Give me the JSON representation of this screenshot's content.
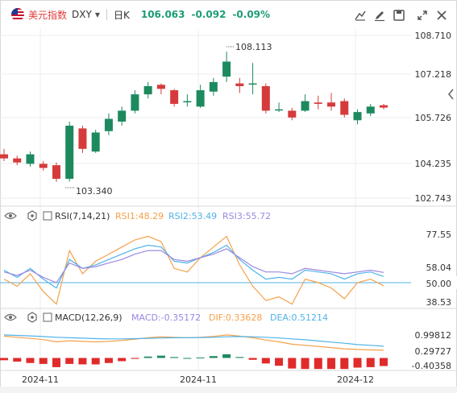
{
  "header": {
    "symbol_name": "美元指数",
    "symbol_code": "DXY",
    "interval": "日K",
    "price": "106.063",
    "change": "-0.092",
    "change_pct": "-0.09%",
    "tool_icons": [
      "indicator-icon",
      "draw-icon",
      "save-icon",
      "fullscreen-icon",
      "close-icon"
    ]
  },
  "colors": {
    "up": "#1c8a5e",
    "down": "#d63b3b",
    "rsi1": "#f5a049",
    "rsi2": "#4fb3e8",
    "rsi3": "#9b88e0",
    "macd_up": "#1c8a5e",
    "macd_down": "#e02b2b",
    "dif": "#f5a049",
    "dea": "#4fb3e8"
  },
  "main_axis": [
    "108.710",
    "107.218",
    "105.726",
    "104.235",
    "102.743"
  ],
  "main_labels": {
    "high": "108.113",
    "low": "103.340"
  },
  "rsi": {
    "title": "RSI(7,14,21)",
    "rsi1": "RSI1:48.29",
    "rsi2": "RSI2:53.49",
    "rsi3": "RSI3:55.72",
    "axis": [
      "77.55",
      "58.04",
      "50.00",
      "38.53"
    ]
  },
  "macd": {
    "title": "MACD(12,26,9)",
    "macd": "MACD:-0.35172",
    "dif": "DIF:0.33628",
    "dea": "DEA:0.51214",
    "axis": [
      "0.99812",
      "0.29727",
      "-0.40358"
    ]
  },
  "x_axis": [
    "2024-11",
    "2024-11",
    "2024-12"
  ],
  "chart_data": {
    "type": "candlestick",
    "ylim": [
      102.743,
      108.71
    ],
    "candles": [
      {
        "o": 104.35,
        "h": 104.55,
        "l": 104.1,
        "c": 104.2
      },
      {
        "o": 104.2,
        "h": 104.3,
        "l": 103.95,
        "c": 104.05
      },
      {
        "o": 104.0,
        "h": 104.45,
        "l": 103.9,
        "c": 104.35
      },
      {
        "o": 104.0,
        "h": 104.1,
        "l": 103.75,
        "c": 103.85
      },
      {
        "o": 103.95,
        "h": 104.05,
        "l": 103.34,
        "c": 103.45
      },
      {
        "o": 103.45,
        "h": 105.55,
        "l": 103.35,
        "c": 105.4
      },
      {
        "o": 105.3,
        "h": 105.4,
        "l": 104.4,
        "c": 104.55
      },
      {
        "o": 104.45,
        "h": 105.25,
        "l": 104.4,
        "c": 105.15
      },
      {
        "o": 105.2,
        "h": 105.85,
        "l": 105.05,
        "c": 105.65
      },
      {
        "o": 105.55,
        "h": 106.1,
        "l": 105.4,
        "c": 105.95
      },
      {
        "o": 105.95,
        "h": 106.7,
        "l": 105.85,
        "c": 106.55
      },
      {
        "o": 106.55,
        "h": 107.0,
        "l": 106.4,
        "c": 106.85
      },
      {
        "o": 106.9,
        "h": 106.95,
        "l": 106.55,
        "c": 106.75
      },
      {
        "o": 106.7,
        "h": 106.75,
        "l": 106.1,
        "c": 106.2
      },
      {
        "o": 106.3,
        "h": 106.55,
        "l": 106.1,
        "c": 106.3
      },
      {
        "o": 106.1,
        "h": 106.9,
        "l": 106.05,
        "c": 106.7
      },
      {
        "o": 106.65,
        "h": 107.15,
        "l": 106.5,
        "c": 107.0
      },
      {
        "o": 107.2,
        "h": 108.113,
        "l": 107.0,
        "c": 107.75
      },
      {
        "o": 106.95,
        "h": 107.15,
        "l": 106.6,
        "c": 106.85
      },
      {
        "o": 106.95,
        "h": 107.7,
        "l": 106.55,
        "c": 106.95
      },
      {
        "o": 106.85,
        "h": 106.95,
        "l": 105.85,
        "c": 105.95
      },
      {
        "o": 106.0,
        "h": 106.25,
        "l": 105.9,
        "c": 106.0
      },
      {
        "o": 105.95,
        "h": 106.05,
        "l": 105.6,
        "c": 105.7
      },
      {
        "o": 105.95,
        "h": 106.55,
        "l": 105.9,
        "c": 106.3
      },
      {
        "o": 106.25,
        "h": 106.5,
        "l": 106.0,
        "c": 106.2
      },
      {
        "o": 106.25,
        "h": 106.6,
        "l": 105.95,
        "c": 106.1
      },
      {
        "o": 106.3,
        "h": 106.4,
        "l": 105.7,
        "c": 105.8
      },
      {
        "o": 105.6,
        "h": 106.0,
        "l": 105.45,
        "c": 105.9
      },
      {
        "o": 105.85,
        "h": 106.2,
        "l": 105.75,
        "c": 106.1
      },
      {
        "o": 106.15,
        "h": 106.2,
        "l": 106.0,
        "c": 106.063
      }
    ],
    "rsi1": [
      52,
      48,
      55,
      45,
      38,
      68,
      55,
      62,
      66,
      70,
      74,
      76,
      73,
      58,
      56,
      64,
      70,
      76,
      60,
      48,
      40,
      42,
      38,
      52,
      50,
      47,
      41,
      50,
      52,
      48.29
    ],
    "rsi2": [
      57,
      53,
      58,
      52,
      47,
      63,
      58,
      60,
      63,
      66,
      69,
      71,
      70,
      62,
      61,
      64,
      67,
      71,
      63,
      57,
      52,
      53,
      52,
      57,
      56,
      55,
      52,
      55,
      56,
      53.49
    ],
    "rsi3": [
      56,
      54,
      57,
      53,
      50,
      61,
      58,
      59,
      61,
      63,
      66,
      68,
      68,
      63,
      62,
      64,
      66,
      69,
      64,
      59,
      56,
      56,
      55,
      58,
      57,
      56,
      55,
      56,
      57,
      55.72
    ],
    "dif": [
      0.95,
      0.9,
      0.85,
      0.8,
      0.7,
      0.75,
      0.72,
      0.7,
      0.72,
      0.76,
      0.82,
      0.88,
      0.92,
      0.9,
      0.88,
      0.9,
      0.94,
      1.0,
      0.95,
      0.88,
      0.78,
      0.7,
      0.6,
      0.55,
      0.5,
      0.45,
      0.4,
      0.37,
      0.35,
      0.336
    ],
    "dea": [
      1.0,
      0.98,
      0.96,
      0.93,
      0.9,
      0.88,
      0.86,
      0.84,
      0.83,
      0.83,
      0.84,
      0.85,
      0.87,
      0.88,
      0.88,
      0.89,
      0.9,
      0.92,
      0.93,
      0.92,
      0.9,
      0.87,
      0.83,
      0.79,
      0.74,
      0.69,
      0.64,
      0.58,
      0.55,
      0.512
    ],
    "macd_hist": [
      -0.1,
      -0.16,
      -0.22,
      -0.26,
      -0.4,
      -0.26,
      -0.28,
      -0.28,
      -0.22,
      -0.14,
      -0.04,
      0.06,
      0.1,
      0.04,
      0.0,
      0.02,
      0.08,
      0.16,
      0.04,
      -0.08,
      -0.24,
      -0.34,
      -0.46,
      -0.48,
      -0.48,
      -0.48,
      -0.48,
      -0.42,
      -0.4,
      -0.35172
    ]
  }
}
